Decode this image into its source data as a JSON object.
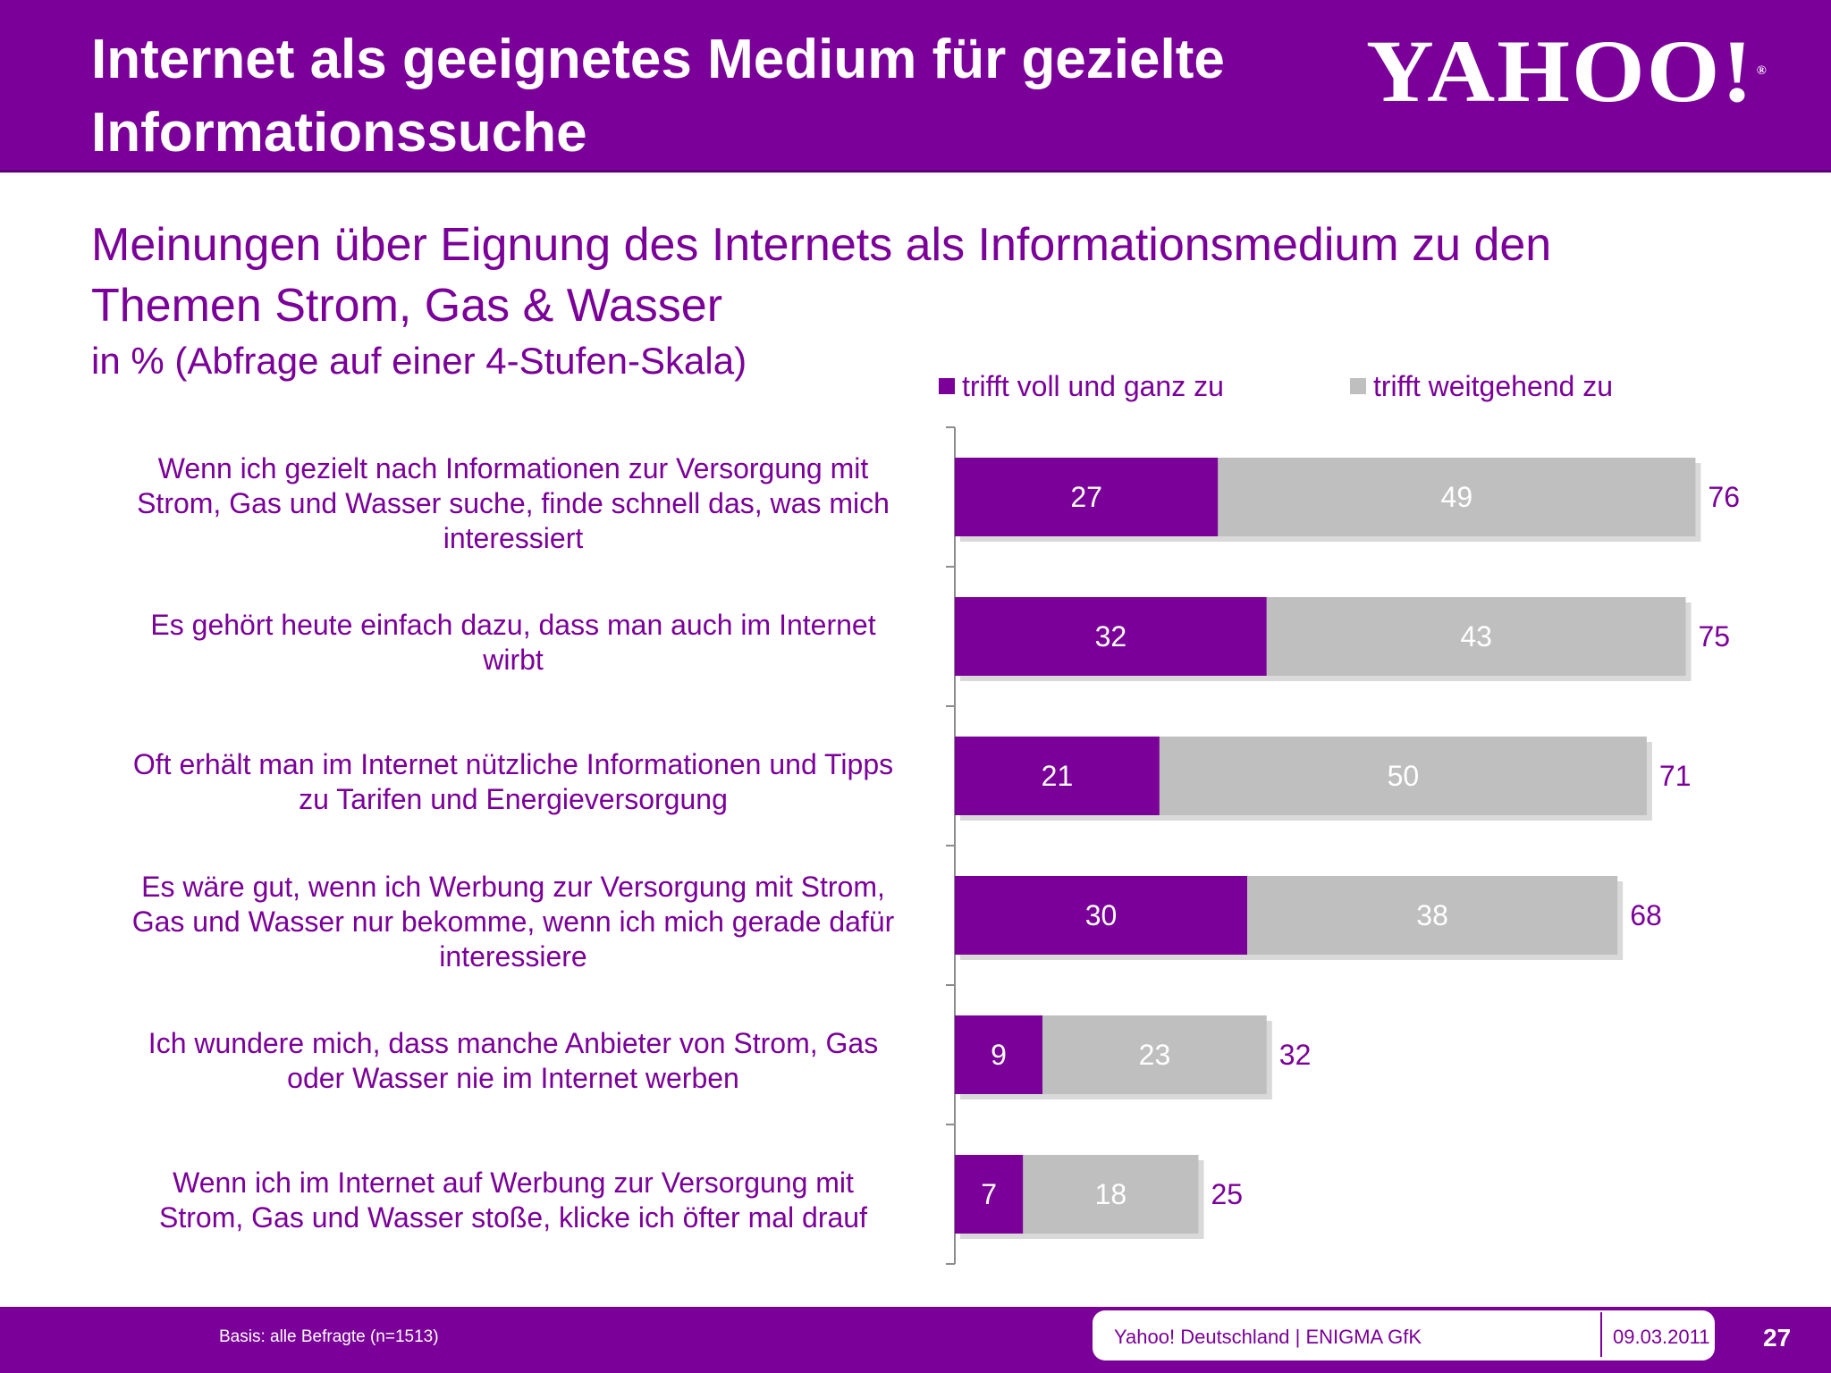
{
  "header": {
    "title_line1": "Internet als geeignetes Medium für gezielte",
    "title_line2": "Informationssuche",
    "logo_text": "YAHOO!",
    "logo_reg": "®"
  },
  "subtitle": {
    "line1": "Meinungen über Eignung des Internets als Informationsmedium zu den",
    "line2": "Themen Strom, Gas & Wasser",
    "unit": "in % (Abfrage auf einer 4-Stufen-Skala)"
  },
  "colors": {
    "brand_purple": "#7b0099",
    "bar_grey": "#bfbfbf"
  },
  "chart_data": {
    "type": "bar",
    "orientation": "horizontal",
    "stacked": true,
    "legend_position": "top",
    "xlim": [
      0,
      100
    ],
    "categories": [
      [
        "Wenn ich gezielt nach Informationen zur Versorgung mit",
        "Strom, Gas und Wasser suche, finde schnell das, was mich",
        "interessiert"
      ],
      [
        "Es gehört heute einfach dazu, dass man auch im Internet",
        "wirbt"
      ],
      [
        "Oft erhält man im Internet nützliche Informationen und Tipps",
        "zu Tarifen und Energieversorgung"
      ],
      [
        "Es wäre gut, wenn ich Werbung zur Versorgung mit Strom,",
        "Gas und Wasser nur bekomme, wenn ich mich gerade dafür",
        "interessiere"
      ],
      [
        "Ich wundere mich, dass manche Anbieter von Strom, Gas",
        "oder Wasser nie im Internet werben"
      ],
      [
        "Wenn ich im Internet auf Werbung zur Versorgung mit",
        "Strom, Gas und Wasser stoße, klicke ich öfter mal drauf"
      ]
    ],
    "series": [
      {
        "name": "trifft voll und ganz zu",
        "color": "#7b0099",
        "values": [
          27,
          32,
          21,
          30,
          9,
          7
        ]
      },
      {
        "name": "trifft weitgehend zu",
        "color": "#bfbfbf",
        "values": [
          49,
          43,
          50,
          38,
          23,
          18
        ]
      }
    ],
    "totals": [
      76,
      75,
      71,
      68,
      32,
      25
    ]
  },
  "footer": {
    "basis": "Basis:  alle Befragte (n=1513)",
    "source": "Yahoo! Deutschland | ENIGMA GfK",
    "date": "09.03.2011",
    "page": "27"
  }
}
